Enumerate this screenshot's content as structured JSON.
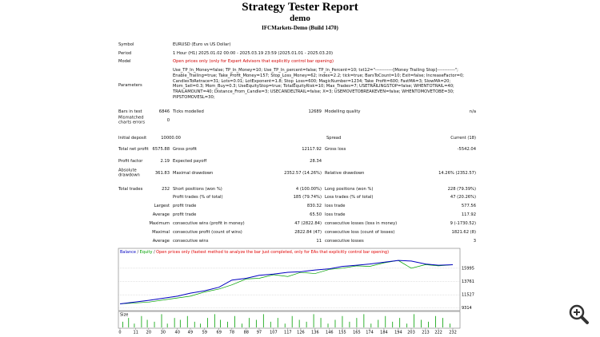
{
  "header": {
    "title": "Strategy Tester Report",
    "subtitle": "demo",
    "server": "IFCMarkets-Demo (Build 1470)"
  },
  "info": [
    {
      "label": "Symbol",
      "value": "EURUSD (Euro vs US Dollar)"
    },
    {
      "label": "Period",
      "value": "1 Hour (H1) 2025.01.02 00:00 - 2025.03.19 23:59 (2025.01.01 - 2025.03.20)"
    },
    {
      "label": "Model",
      "value": "Open prices only (only for Expert Advisors that explicitly control bar opening)"
    }
  ],
  "parameters": {
    "label": "Parameters",
    "lines": [
      "Use_TP_In_Money=false; TP_In_Money=10; Use_TP_In_percent=false; TP_In_Percent=10; txt12=\"------------[Money Trailing Stop]------------\";",
      "Enable_Trailing=true; Take_Profit_Money=157; Stop_Loss_Money=62; index=2.2; tick=true; BarsToCount=10; Exit=false; IncreaseFactor=0;",
      "CandlesToRetrace=31; Lots=0.01; LotExponent=1.8; Stop_Loss=600; MagicNumber=1234; Take_Profit=600; FastMA=3; SlowMA=20;",
      "Mom_Sell=0.3; Mom_Buy=0.3; UseEquityStop=true; TotalEquityRisk=10; Max_Trades=7; USETRAILINGSTOP=false; WHENTOTRAIL=40;",
      "TRAILAMOUNT=40; Distance_From_Candle=3; USECANDELTRAIL=false; X=3; USEMOVETOBREAKEVEN=false; WHENTOMOVETOBE=30;",
      "PIPSTOMOVESL=30;"
    ]
  },
  "stats": [
    [
      "Bars in test",
      "6846",
      "Ticks modelled",
      "12689",
      "Modelling quality",
      "n/a"
    ],
    [
      "Mismatched charts errors",
      "0"
    ],
    [
      "Initial deposit",
      "10000.00",
      "Spread",
      "Current (18)"
    ],
    [
      "Total net profit",
      "6575.88",
      "Gross profit",
      "12117.92",
      "Gross loss",
      "-5542.04"
    ],
    [
      "Profit factor",
      "2.19",
      "Expected payoff",
      "28.34"
    ],
    [
      "Absolute drawdown",
      "361.83",
      "Maximal drawdown",
      "2352.57 (14.26%)",
      "Relative drawdown",
      "14.26% (2352.57)"
    ],
    [
      "Total trades",
      "232",
      "Short positions (won %)",
      "4 (100.00%)",
      "Long positions (won %)",
      "228 (79.39%)"
    ],
    [
      "Profit trades (% of total)",
      "185 (79.74%)",
      "Loss trades (% of total)",
      "47 (20.26%)"
    ],
    [
      "Largest",
      "profit trade",
      "830.32",
      "loss trade",
      "577.56"
    ],
    [
      "Average",
      "profit trade",
      "65.50",
      "loss trade",
      "117.92"
    ],
    [
      "Maximum",
      "consecutive wins (profit in money)",
      "47 (2822.84)",
      "consecutive losses (loss in money)",
      "9 (-1730.52)"
    ],
    [
      "Maximal",
      "consecutive profit (count of wins)",
      "2822.84 (47)",
      "consecutive loss (count of losses)",
      "1821.62 (8)"
    ],
    [
      "Average",
      "consecutive wins",
      "11",
      "consecutive losses",
      "3"
    ]
  ],
  "graph": {
    "type": "line",
    "legend": [
      {
        "name": "Balance",
        "color": "#0000c0"
      },
      {
        "name": "Equity",
        "color": "#00a000"
      },
      {
        "name": "Open prices only (fastest method to analyze the bar just completed, only for EAs that explicitly control bar opening)",
        "color": "#e00000"
      }
    ],
    "legend_separator": "/",
    "size_label": "Size",
    "xlim": [
      0,
      237
    ],
    "xticks": [
      0,
      11,
      20,
      30,
      40,
      49,
      59,
      69,
      78,
      88,
      97,
      107,
      117,
      126,
      136,
      146,
      155,
      165,
      174,
      184,
      194,
      203,
      213,
      222,
      232
    ],
    "ylim": [
      9000,
      19200
    ],
    "yticks": [
      9314,
      11527,
      13761,
      15995
    ],
    "grid": true,
    "balance": {
      "x": [
        0,
        20,
        40,
        49,
        59,
        69,
        78,
        88,
        97,
        107,
        117,
        126,
        136,
        146,
        155,
        165,
        174,
        184,
        194,
        203,
        213,
        222,
        232
      ],
      "values": [
        10000,
        10600,
        11300,
        11800,
        12200,
        12800,
        14000,
        14300,
        14800,
        15000,
        15300,
        15400,
        15700,
        15900,
        16300,
        16500,
        16700,
        17000,
        17300,
        17200,
        16700,
        16500,
        16576
      ]
    },
    "equity": {
      "x": [
        0,
        20,
        40,
        49,
        59,
        69,
        78,
        88,
        97,
        107,
        117,
        126,
        136,
        146,
        155,
        165,
        174,
        184,
        194,
        203,
        213,
        222,
        232
      ],
      "values": [
        10000,
        10300,
        11000,
        11300,
        12000,
        12500,
        13200,
        14200,
        14300,
        14900,
        14600,
        15300,
        15100,
        15800,
        16000,
        16400,
        16300,
        16900,
        17300,
        16000,
        16600,
        16400,
        16576
      ]
    },
    "size": {
      "color": "#00a000",
      "ylim": [
        0,
        0.08
      ],
      "x": [
        2,
        6,
        10,
        15,
        19,
        24,
        29,
        33,
        38,
        42,
        47,
        52,
        56,
        61,
        66,
        70,
        75,
        80,
        85,
        90,
        95,
        100,
        105,
        110,
        115,
        120,
        125,
        130,
        135,
        140,
        145,
        150,
        155,
        160,
        165,
        170,
        175,
        180,
        185,
        190,
        195,
        200,
        205,
        210,
        215,
        220,
        225,
        230
      ],
      "values": [
        0.03,
        0.05,
        0.02,
        0.06,
        0.04,
        0.03,
        0.07,
        0.02,
        0.05,
        0.04,
        0.06,
        0.03,
        0.02,
        0.05,
        0.07,
        0.04,
        0.03,
        0.06,
        0.02,
        0.05,
        0.04,
        0.07,
        0.03,
        0.05,
        0.02,
        0.06,
        0.04,
        0.03,
        0.07,
        0.05,
        0.02,
        0.04,
        0.06,
        0.03,
        0.05,
        0.07,
        0.02,
        0.04,
        0.06,
        0.03,
        0.05,
        0.02,
        0.07,
        0.04,
        0.03,
        0.06,
        0.05,
        0.02
      ]
    }
  }
}
